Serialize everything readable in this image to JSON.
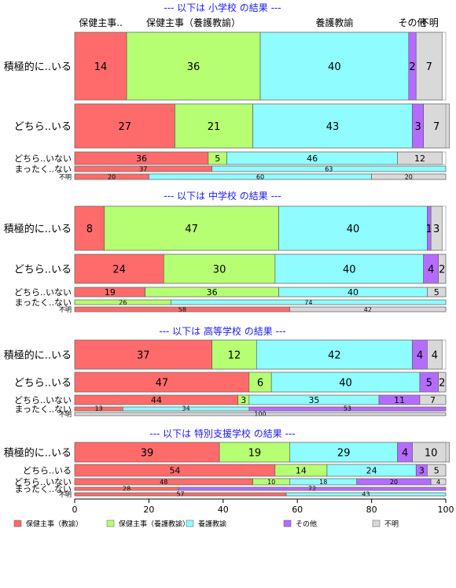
{
  "chart_data": {
    "type": "bar",
    "orientation": "horizontal",
    "stacked": true,
    "normalized": "percent",
    "xlim": [
      0,
      100
    ],
    "x_ticks": [
      0,
      20,
      40,
      60,
      80,
      100
    ],
    "column_headers": [
      "保健主事..",
      "保健主事（養護教諭）",
      "養護教諭",
      "その他",
      "不明"
    ],
    "legend_position": "bottom",
    "series": [
      {
        "name": "保健主事（教諭）",
        "color": "#ff6b6b"
      },
      {
        "name": "保健主事（養護教諭）",
        "color": "#b6ff72"
      },
      {
        "name": "養護教諭",
        "color": "#8ffcff"
      },
      {
        "name": "その他",
        "color": "#b46cff"
      },
      {
        "name": "不明",
        "color": "#d9d9d9"
      }
    ],
    "panels": [
      {
        "title": "--- 以下は 小学校 の結果 ---",
        "rows": [
          {
            "label": "積極的に..いる",
            "values": [
              14,
              36,
              40,
              2,
              7
            ]
          },
          {
            "label": "どちら..いる",
            "values": [
              27,
              21,
              43,
              3,
              7
            ]
          },
          {
            "label": "どちら..いない",
            "values": [
              36,
              5,
              46,
              0,
              12
            ]
          },
          {
            "label": "まったく..ない",
            "values": [
              37,
              0,
              63,
              0,
              0
            ]
          },
          {
            "label": "不明",
            "values": [
              20,
              0,
              60,
              0,
              20
            ]
          }
        ]
      },
      {
        "title": "--- 以下は 中学校 の結果 ---",
        "rows": [
          {
            "label": "積極的に..いる",
            "values": [
              8,
              47,
              40,
              1,
              3
            ]
          },
          {
            "label": "どちら..いる",
            "values": [
              24,
              30,
              40,
              4,
              2
            ]
          },
          {
            "label": "どちら..いない",
            "values": [
              19,
              36,
              40,
              0,
              5
            ]
          },
          {
            "label": "まったく..ない",
            "values": [
              0,
              26,
              74,
              0,
              0
            ]
          },
          {
            "label": "不明",
            "values": [
              58,
              0,
              0,
              0,
              42
            ]
          }
        ]
      },
      {
        "title": "--- 以下は 高等学校 の結果 ---",
        "rows": [
          {
            "label": "積極的に..いる",
            "values": [
              37,
              12,
              42,
              4,
              4
            ]
          },
          {
            "label": "どちら..いる",
            "values": [
              47,
              6,
              40,
              5,
              2
            ]
          },
          {
            "label": "どちら..いない",
            "values": [
              44,
              3,
              35,
              11,
              7
            ]
          },
          {
            "label": "まったく..ない",
            "values": [
              13,
              0,
              34,
              53,
              0
            ]
          },
          {
            "label": "不明",
            "values": [
              0,
              0,
              0,
              0,
              100
            ]
          }
        ]
      },
      {
        "title": "--- 以下は 特別支援学校 の結果 ---",
        "rows": [
          {
            "label": "積極的に..いる",
            "values": [
              39,
              19,
              29,
              4,
              10
            ]
          },
          {
            "label": "どちら..いる",
            "values": [
              54,
              14,
              24,
              3,
              5
            ]
          },
          {
            "label": "どちら..いない",
            "values": [
              48,
              10,
              18,
              20,
              4
            ]
          },
          {
            "label": "まったく..ない",
            "values": [
              28,
              0,
              0,
              72,
              0
            ]
          },
          {
            "label": "不明",
            "values": [
              57,
              0,
              43,
              0,
              0
            ]
          }
        ]
      }
    ]
  }
}
